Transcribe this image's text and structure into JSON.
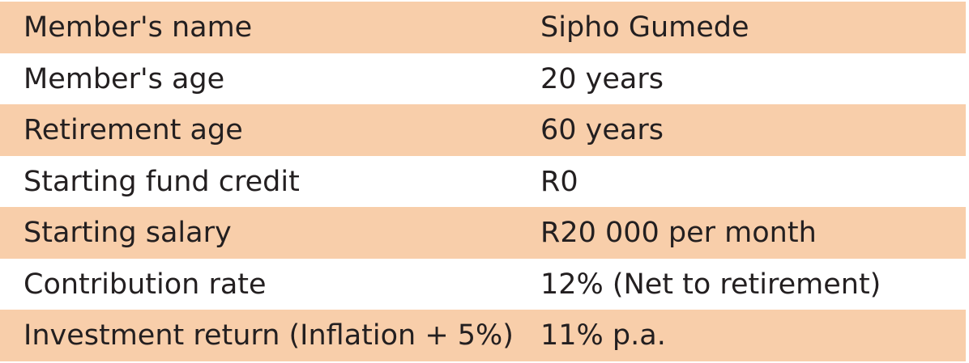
{
  "rows": [
    {
      "label": "Member's name",
      "value": "Sipho Gumede"
    },
    {
      "label": "Member's age",
      "value": "20 years"
    },
    {
      "label": "Retirement age",
      "value": "60 years"
    },
    {
      "label": "Starting fund credit",
      "value": "R0"
    },
    {
      "label": "Starting salary",
      "value": "R20 000 per month"
    },
    {
      "label": "Contribution rate",
      "value": "12% (Net to retirement)"
    },
    {
      "label": "Investment return (Inflation + 5%)",
      "value": "11% p.a."
    }
  ],
  "colors": {
    "shaded_row": "#f8ceaa",
    "text": "#231f20",
    "background": "#ffffff"
  }
}
